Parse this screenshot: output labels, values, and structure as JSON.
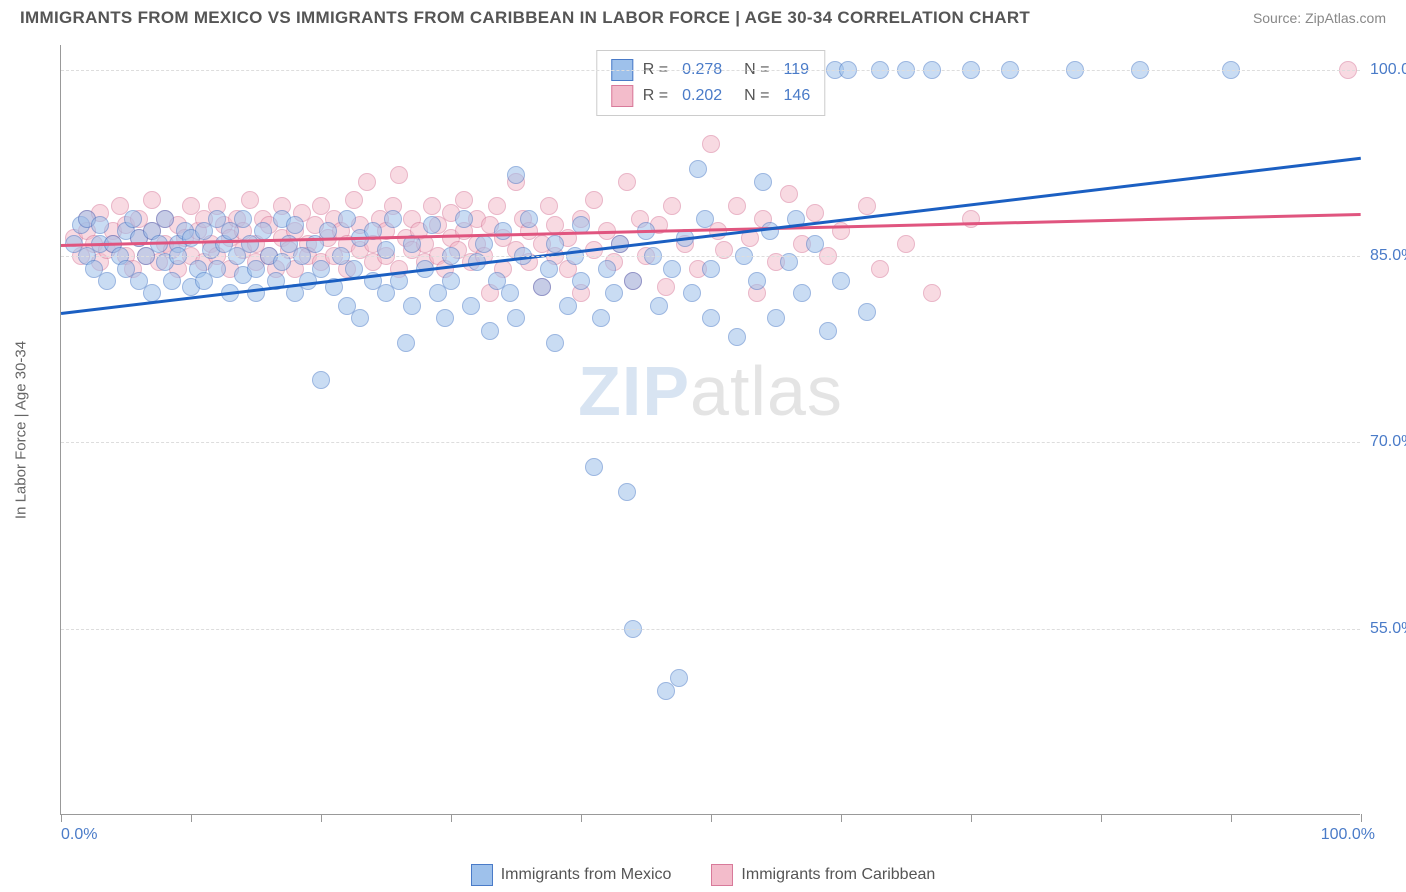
{
  "header": {
    "title": "IMMIGRANTS FROM MEXICO VS IMMIGRANTS FROM CARIBBEAN IN LABOR FORCE | AGE 30-34 CORRELATION CHART",
    "source": "Source: ZipAtlas.com"
  },
  "chart": {
    "type": "scatter",
    "background_color": "#ffffff",
    "grid_color": "#dddddd",
    "axis_color": "#999999",
    "ylabel": "In Labor Force | Age 30-34",
    "ylabel_fontsize": 15,
    "xlim": [
      0,
      100
    ],
    "ylim": [
      40,
      102
    ],
    "x_axis": {
      "min_label": "0.0%",
      "max_label": "100.0%",
      "tick_positions": [
        0,
        10,
        20,
        30,
        40,
        50,
        60,
        70,
        80,
        90,
        100
      ]
    },
    "y_ticks": [
      {
        "v": 55,
        "label": "55.0%"
      },
      {
        "v": 70,
        "label": "70.0%"
      },
      {
        "v": 85,
        "label": "85.0%"
      },
      {
        "v": 100,
        "label": "100.0%"
      }
    ],
    "marker_size": 18,
    "marker_opacity": 0.55,
    "watermark": {
      "bold": "ZIP",
      "thin": "atlas"
    }
  },
  "legend_top": {
    "rows": [
      {
        "swatch": "a",
        "r_label": "R =",
        "r_val": "0.278",
        "n_label": "N =",
        "n_val": "119"
      },
      {
        "swatch": "b",
        "r_label": "R =",
        "r_val": "0.202",
        "n_label": "N =",
        "n_val": "146"
      }
    ]
  },
  "legend_bottom": {
    "items": [
      {
        "swatch": "a",
        "label": "Immigrants from Mexico"
      },
      {
        "swatch": "b",
        "label": "Immigrants from Caribbean"
      }
    ]
  },
  "series": {
    "mexico": {
      "color_fill": "#9ec1eb",
      "color_stroke": "#4a7bc8",
      "trend": {
        "x1": 0,
        "y1": 80.5,
        "x2": 100,
        "y2": 93,
        "color": "#1b5fc2",
        "width": 2.5
      },
      "points": [
        [
          1,
          86
        ],
        [
          1.5,
          87.5
        ],
        [
          2,
          85
        ],
        [
          2,
          88
        ],
        [
          2.5,
          84
        ],
        [
          3,
          86
        ],
        [
          3,
          87.5
        ],
        [
          3.5,
          83
        ],
        [
          4,
          86
        ],
        [
          4.5,
          85
        ],
        [
          5,
          87
        ],
        [
          5,
          84
        ],
        [
          5.5,
          88
        ],
        [
          6,
          86.5
        ],
        [
          6,
          83
        ],
        [
          6.5,
          85
        ],
        [
          7,
          87
        ],
        [
          7,
          82
        ],
        [
          7.5,
          86
        ],
        [
          8,
          84.5
        ],
        [
          8,
          88
        ],
        [
          8.5,
          83
        ],
        [
          9,
          86
        ],
        [
          9,
          85
        ],
        [
          9.5,
          87
        ],
        [
          10,
          82.5
        ],
        [
          10,
          86.5
        ],
        [
          10.5,
          84
        ],
        [
          11,
          87
        ],
        [
          11,
          83
        ],
        [
          11.5,
          85.5
        ],
        [
          12,
          88
        ],
        [
          12,
          84
        ],
        [
          12.5,
          86
        ],
        [
          13,
          82
        ],
        [
          13,
          87
        ],
        [
          13.5,
          85
        ],
        [
          14,
          83.5
        ],
        [
          14,
          88
        ],
        [
          14.5,
          86
        ],
        [
          15,
          84
        ],
        [
          15,
          82
        ],
        [
          15.5,
          87
        ],
        [
          16,
          85
        ],
        [
          16.5,
          83
        ],
        [
          17,
          88
        ],
        [
          17,
          84.5
        ],
        [
          17.5,
          86
        ],
        [
          18,
          82
        ],
        [
          18,
          87.5
        ],
        [
          18.5,
          85
        ],
        [
          19,
          83
        ],
        [
          19.5,
          86
        ],
        [
          20,
          84
        ],
        [
          20,
          75
        ],
        [
          20.5,
          87
        ],
        [
          21,
          82.5
        ],
        [
          21.5,
          85
        ],
        [
          22,
          88
        ],
        [
          22,
          81
        ],
        [
          22.5,
          84
        ],
        [
          23,
          86.5
        ],
        [
          23,
          80
        ],
        [
          24,
          83
        ],
        [
          24,
          87
        ],
        [
          25,
          82
        ],
        [
          25,
          85.5
        ],
        [
          25.5,
          88
        ],
        [
          26,
          83
        ],
        [
          26.5,
          78
        ],
        [
          27,
          86
        ],
        [
          27,
          81
        ],
        [
          28,
          84
        ],
        [
          28.5,
          87.5
        ],
        [
          29,
          82
        ],
        [
          29.5,
          80
        ],
        [
          30,
          85
        ],
        [
          30,
          83
        ],
        [
          31,
          88
        ],
        [
          31.5,
          81
        ],
        [
          32,
          84.5
        ],
        [
          32.5,
          86
        ],
        [
          33,
          79
        ],
        [
          33.5,
          83
        ],
        [
          34,
          87
        ],
        [
          34.5,
          82
        ],
        [
          35,
          91.5
        ],
        [
          35,
          80
        ],
        [
          35.5,
          85
        ],
        [
          36,
          88
        ],
        [
          37,
          82.5
        ],
        [
          37.5,
          84
        ],
        [
          38,
          86
        ],
        [
          38,
          78
        ],
        [
          39,
          81
        ],
        [
          39.5,
          85
        ],
        [
          40,
          83
        ],
        [
          40,
          87.5
        ],
        [
          41,
          68
        ],
        [
          41.5,
          80
        ],
        [
          42,
          84
        ],
        [
          42.5,
          82
        ],
        [
          43,
          86
        ],
        [
          43.5,
          66
        ],
        [
          44,
          55
        ],
        [
          44,
          83
        ],
        [
          45,
          87
        ],
        [
          45.5,
          85
        ],
        [
          46,
          81
        ],
        [
          46.5,
          50
        ],
        [
          47,
          84
        ],
        [
          47.5,
          51
        ],
        [
          48,
          86.5
        ],
        [
          48.5,
          82
        ],
        [
          49,
          92
        ],
        [
          49.5,
          88
        ],
        [
          50,
          84
        ],
        [
          50,
          80
        ],
        [
          51,
          100
        ],
        [
          52,
          78.5
        ],
        [
          52.5,
          85
        ],
        [
          53,
          100
        ],
        [
          53.5,
          83
        ],
        [
          54,
          91
        ],
        [
          54.5,
          87
        ],
        [
          55,
          80
        ],
        [
          55.5,
          100
        ],
        [
          56,
          84.5
        ],
        [
          56.5,
          88
        ],
        [
          57,
          82
        ],
        [
          57.5,
          100
        ],
        [
          58,
          86
        ],
        [
          59,
          79
        ],
        [
          59.5,
          100
        ],
        [
          60,
          83
        ],
        [
          60.5,
          100
        ],
        [
          62,
          80.5
        ],
        [
          63,
          100
        ],
        [
          65,
          100
        ],
        [
          67,
          100
        ],
        [
          70,
          100
        ],
        [
          73,
          100
        ],
        [
          78,
          100
        ],
        [
          83,
          100
        ],
        [
          90,
          100
        ]
      ]
    },
    "caribbean": {
      "color_fill": "#f3bccb",
      "color_stroke": "#d87a9a",
      "trend": {
        "x1": 0,
        "y1": 86,
        "x2": 100,
        "y2": 88.5,
        "color": "#e0557f",
        "width": 2.5
      },
      "points": [
        [
          1,
          86.5
        ],
        [
          1.5,
          85
        ],
        [
          2,
          88
        ],
        [
          2,
          87
        ],
        [
          2.5,
          86
        ],
        [
          3,
          84.5
        ],
        [
          3,
          88.5
        ],
        [
          3.5,
          85.5
        ],
        [
          4,
          87
        ],
        [
          4,
          86
        ],
        [
          4.5,
          89
        ],
        [
          5,
          85
        ],
        [
          5,
          87.5
        ],
        [
          5.5,
          84
        ],
        [
          6,
          86.5
        ],
        [
          6,
          88
        ],
        [
          6.5,
          85
        ],
        [
          7,
          87
        ],
        [
          7,
          89.5
        ],
        [
          7.5,
          84.5
        ],
        [
          8,
          86
        ],
        [
          8,
          88
        ],
        [
          8.5,
          85.5
        ],
        [
          9,
          87.5
        ],
        [
          9,
          84
        ],
        [
          9.5,
          86.5
        ],
        [
          10,
          89
        ],
        [
          10,
          85
        ],
        [
          10.5,
          87
        ],
        [
          11,
          84.5
        ],
        [
          11,
          88
        ],
        [
          11.5,
          86
        ],
        [
          12,
          85
        ],
        [
          12,
          89
        ],
        [
          12.5,
          87.5
        ],
        [
          13,
          84
        ],
        [
          13,
          86.5
        ],
        [
          13.5,
          88
        ],
        [
          14,
          85.5
        ],
        [
          14,
          87
        ],
        [
          14.5,
          89.5
        ],
        [
          15,
          84.5
        ],
        [
          15,
          86
        ],
        [
          15.5,
          88
        ],
        [
          16,
          85
        ],
        [
          16,
          87.5
        ],
        [
          16.5,
          84
        ],
        [
          17,
          86.5
        ],
        [
          17,
          89
        ],
        [
          17.5,
          85.5
        ],
        [
          18,
          87
        ],
        [
          18,
          84
        ],
        [
          18.5,
          88.5
        ],
        [
          19,
          86
        ],
        [
          19,
          85
        ],
        [
          19.5,
          87.5
        ],
        [
          20,
          89
        ],
        [
          20,
          84.5
        ],
        [
          20.5,
          86.5
        ],
        [
          21,
          85
        ],
        [
          21,
          88
        ],
        [
          21.5,
          87
        ],
        [
          22,
          84
        ],
        [
          22,
          86
        ],
        [
          22.5,
          89.5
        ],
        [
          23,
          85.5
        ],
        [
          23,
          87.5
        ],
        [
          23.5,
          91
        ],
        [
          24,
          84.5
        ],
        [
          24,
          86
        ],
        [
          24.5,
          88
        ],
        [
          25,
          85
        ],
        [
          25,
          87
        ],
        [
          25.5,
          89
        ],
        [
          26,
          84
        ],
        [
          26,
          91.5
        ],
        [
          26.5,
          86.5
        ],
        [
          27,
          85.5
        ],
        [
          27,
          88
        ],
        [
          27.5,
          87
        ],
        [
          28,
          84.5
        ],
        [
          28,
          86
        ],
        [
          28.5,
          89
        ],
        [
          29,
          85
        ],
        [
          29,
          87.5
        ],
        [
          29.5,
          84
        ],
        [
          30,
          86.5
        ],
        [
          30,
          88.5
        ],
        [
          30.5,
          85.5
        ],
        [
          31,
          87
        ],
        [
          31,
          89.5
        ],
        [
          31.5,
          84.5
        ],
        [
          32,
          86
        ],
        [
          32,
          88
        ],
        [
          32.5,
          85
        ],
        [
          33,
          87.5
        ],
        [
          33,
          82
        ],
        [
          33.5,
          89
        ],
        [
          34,
          84
        ],
        [
          34,
          86.5
        ],
        [
          35,
          85.5
        ],
        [
          35,
          91
        ],
        [
          35.5,
          88
        ],
        [
          36,
          84.5
        ],
        [
          36,
          87
        ],
        [
          37,
          86
        ],
        [
          37,
          82.5
        ],
        [
          37.5,
          89
        ],
        [
          38,
          85
        ],
        [
          38,
          87.5
        ],
        [
          39,
          84
        ],
        [
          39,
          86.5
        ],
        [
          40,
          88
        ],
        [
          40,
          82
        ],
        [
          41,
          85.5
        ],
        [
          41,
          89.5
        ],
        [
          42,
          87
        ],
        [
          42.5,
          84.5
        ],
        [
          43,
          86
        ],
        [
          43.5,
          91
        ],
        [
          44,
          83
        ],
        [
          44.5,
          88
        ],
        [
          45,
          85
        ],
        [
          46,
          87.5
        ],
        [
          46.5,
          82.5
        ],
        [
          47,
          89
        ],
        [
          48,
          86
        ],
        [
          49,
          84
        ],
        [
          50,
          94
        ],
        [
          50.5,
          87
        ],
        [
          51,
          85.5
        ],
        [
          52,
          89
        ],
        [
          53,
          86.5
        ],
        [
          53.5,
          82
        ],
        [
          54,
          88
        ],
        [
          55,
          84.5
        ],
        [
          56,
          90
        ],
        [
          57,
          86
        ],
        [
          58,
          88.5
        ],
        [
          59,
          85
        ],
        [
          60,
          87
        ],
        [
          62,
          89
        ],
        [
          63,
          84
        ],
        [
          65,
          86
        ],
        [
          67,
          82
        ],
        [
          70,
          88
        ],
        [
          99,
          100
        ]
      ]
    }
  }
}
